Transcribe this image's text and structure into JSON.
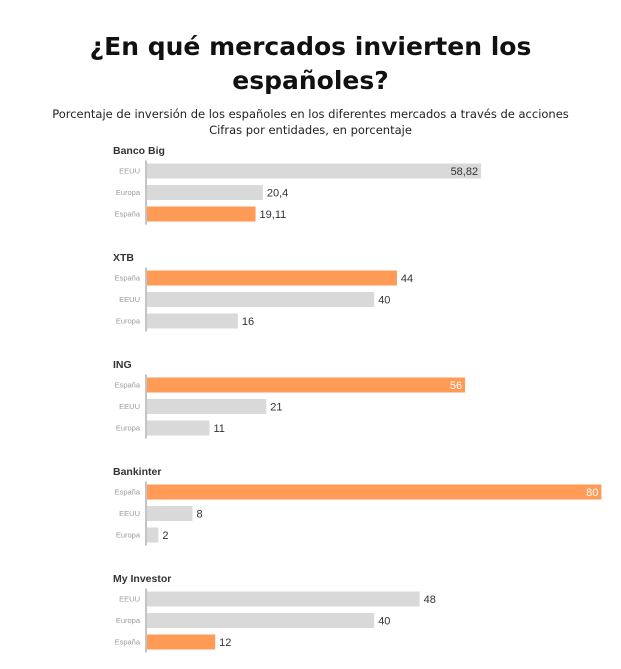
{
  "header": {
    "title_line1": "¿En qué mercados invierten los",
    "title_line2": "españoles?",
    "subtitle_line1": "Porcentaje de inversión de los españoles en los diferentes mercados a través de acciones",
    "subtitle_line2": "Cifras por entidades, en porcentaje"
  },
  "colors": {
    "highlight": "#ff9a57",
    "default": "#d9d9d9",
    "axis": "#888888"
  },
  "chart_data": {
    "type": "bar",
    "orientation": "horizontal",
    "xlim": [
      0,
      100
    ],
    "highlight_category": "España",
    "groups": [
      {
        "name": "Banco Big",
        "bars": [
          {
            "category": "EEUU",
            "value": 58.82,
            "label": "58,82"
          },
          {
            "category": "Europa",
            "value": 20.4,
            "label": "20,4"
          },
          {
            "category": "España",
            "value": 19.11,
            "label": "19,11"
          }
        ]
      },
      {
        "name": "XTB",
        "bars": [
          {
            "category": "España",
            "value": 44,
            "label": "44"
          },
          {
            "category": "EEUU",
            "value": 40,
            "label": "40"
          },
          {
            "category": "Europa",
            "value": 16,
            "label": "16"
          }
        ]
      },
      {
        "name": "ING",
        "bars": [
          {
            "category": "España",
            "value": 56,
            "label": "56"
          },
          {
            "category": "EEUU",
            "value": 21,
            "label": "21"
          },
          {
            "category": "Europa",
            "value": 11,
            "label": "11"
          }
        ]
      },
      {
        "name": "Bankinter",
        "bars": [
          {
            "category": "España",
            "value": 80,
            "label": "80"
          },
          {
            "category": "EEUU",
            "value": 8,
            "label": "8"
          },
          {
            "category": "Europa",
            "value": 2,
            "label": "2"
          }
        ]
      },
      {
        "name": "My Investor",
        "bars": [
          {
            "category": "EEUU",
            "value": 48,
            "label": "48"
          },
          {
            "category": "Europa",
            "value": 40,
            "label": "40"
          },
          {
            "category": "España",
            "value": 12,
            "label": "12"
          }
        ]
      }
    ]
  }
}
